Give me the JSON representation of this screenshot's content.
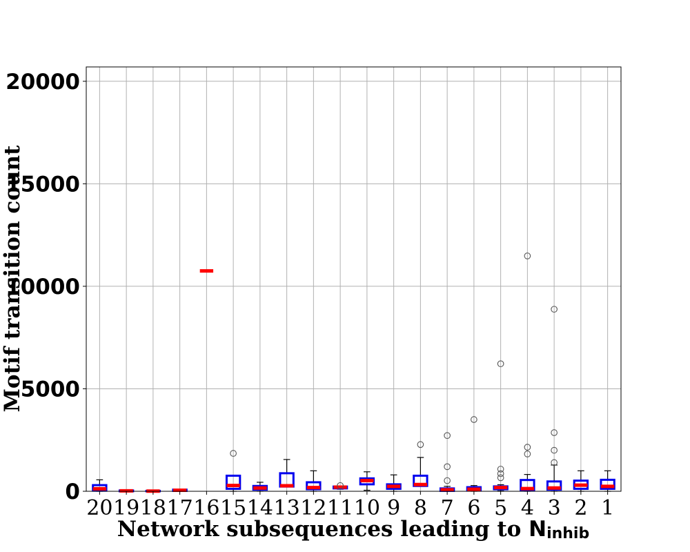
{
  "chart_data": {
    "type": "box",
    "xlabel": "Network subsequences leading to ",
    "xlabel_symbol": "N",
    "xlabel_subscript": "inhib",
    "ylabel": "Motif transition count",
    "ylim": [
      0,
      20700
    ],
    "yticks": [
      0,
      5000,
      10000,
      15000,
      20000
    ],
    "grid": true,
    "colors": {
      "box": "#0000ee",
      "median": "#ff0000",
      "whisker": "#000000",
      "flier": "#555555",
      "grid": "#b0b0b0"
    },
    "categories": [
      "20",
      "19",
      "18",
      "17",
      "16",
      "15",
      "14",
      "13",
      "12",
      "11",
      "10",
      "9",
      "8",
      "7",
      "6",
      "5",
      "4",
      "3",
      "2",
      "1"
    ],
    "boxes": [
      {
        "label": "20",
        "q1": 30,
        "median": 120,
        "q3": 300,
        "whislo": 0,
        "whishi": 560,
        "fliers": []
      },
      {
        "label": "19",
        "q1": 0,
        "median": 20,
        "q3": 40,
        "whislo": 0,
        "whishi": 60,
        "fliers": []
      },
      {
        "label": "18",
        "q1": 0,
        "median": 10,
        "q3": 20,
        "whislo": 0,
        "whishi": 30,
        "fliers": []
      },
      {
        "label": "17",
        "q1": 20,
        "median": 50,
        "q3": 80,
        "whislo": 10,
        "whishi": 100,
        "fliers": []
      },
      {
        "label": "16",
        "q1": 10750,
        "median": 10750,
        "q3": 10750,
        "whislo": 10750,
        "whishi": 10750,
        "fliers": []
      },
      {
        "label": "15",
        "q1": 120,
        "median": 280,
        "q3": 760,
        "whislo": 0,
        "whishi": 760,
        "fliers": [
          1850
        ]
      },
      {
        "label": "14",
        "q1": 80,
        "median": 160,
        "q3": 260,
        "whislo": 0,
        "whishi": 440,
        "fliers": []
      },
      {
        "label": "13",
        "q1": 230,
        "median": 270,
        "q3": 880,
        "whislo": 230,
        "whishi": 1550,
        "fliers": []
      },
      {
        "label": "12",
        "q1": 100,
        "median": 180,
        "q3": 440,
        "whislo": 0,
        "whishi": 1000,
        "fliers": []
      },
      {
        "label": "11",
        "q1": 140,
        "median": 200,
        "q3": 230,
        "whislo": 100,
        "whishi": 240,
        "fliers": [
          280
        ]
      },
      {
        "label": "10",
        "q1": 340,
        "median": 520,
        "q3": 630,
        "whislo": 50,
        "whishi": 950,
        "fliers": []
      },
      {
        "label": "9",
        "q1": 120,
        "median": 240,
        "q3": 340,
        "whislo": 0,
        "whishi": 800,
        "fliers": []
      },
      {
        "label": "8",
        "q1": 260,
        "median": 330,
        "q3": 760,
        "whislo": 260,
        "whishi": 1650,
        "fliers": [
          2280
        ]
      },
      {
        "label": "7",
        "q1": 20,
        "median": 70,
        "q3": 140,
        "whislo": 0,
        "whishi": 240,
        "fliers": [
          520,
          1200,
          2720
        ]
      },
      {
        "label": "6",
        "q1": 40,
        "median": 100,
        "q3": 200,
        "whislo": 0,
        "whishi": 280,
        "fliers": [
          3500
        ]
      },
      {
        "label": "5",
        "q1": 100,
        "median": 180,
        "q3": 240,
        "whislo": 20,
        "whishi": 320,
        "fliers": [
          660,
          860,
          1080,
          6220
        ]
      },
      {
        "label": "4",
        "q1": 60,
        "median": 130,
        "q3": 550,
        "whislo": 0,
        "whishi": 820,
        "fliers": [
          1820,
          2150,
          11480
        ]
      },
      {
        "label": "3",
        "q1": 80,
        "median": 160,
        "q3": 480,
        "whislo": 0,
        "whishi": 1280,
        "fliers": [
          1400,
          2000,
          2860,
          8880
        ]
      },
      {
        "label": "2",
        "q1": 120,
        "median": 300,
        "q3": 520,
        "whislo": 0,
        "whishi": 1000,
        "fliers": []
      },
      {
        "label": "1",
        "q1": 120,
        "median": 240,
        "q3": 560,
        "whislo": 0,
        "whishi": 1000,
        "fliers": []
      }
    ]
  }
}
